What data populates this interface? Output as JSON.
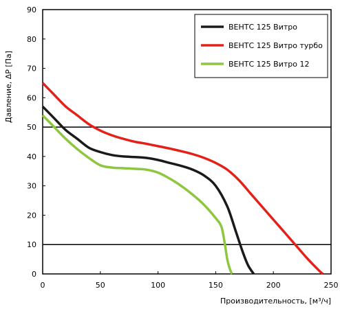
{
  "chart_data": {
    "type": "line",
    "xlabel": "Производительность, [м³/ч]",
    "ylabel": "Давление, ΔP [Па]",
    "xlim": [
      0,
      250
    ],
    "ylim": [
      0,
      90
    ],
    "xticks": [
      0,
      50,
      100,
      150,
      200,
      250
    ],
    "yticks": [
      0,
      10,
      20,
      30,
      40,
      50,
      60,
      70,
      80,
      90
    ],
    "major_gridlines_y": [
      10,
      50
    ],
    "legend_position": "top-right",
    "series": [
      {
        "name": "ВЕНТС 125 Витро",
        "color": "#1a1a1a",
        "points": [
          [
            0,
            57
          ],
          [
            10,
            53
          ],
          [
            20,
            49
          ],
          [
            30,
            46
          ],
          [
            40,
            43
          ],
          [
            50,
            41.5
          ],
          [
            60,
            40.5
          ],
          [
            70,
            40
          ],
          [
            80,
            39.8
          ],
          [
            90,
            39.5
          ],
          [
            100,
            38.8
          ],
          [
            110,
            37.8
          ],
          [
            120,
            36.8
          ],
          [
            130,
            35.5
          ],
          [
            140,
            33.5
          ],
          [
            150,
            30
          ],
          [
            160,
            23
          ],
          [
            167,
            15
          ],
          [
            173,
            8
          ],
          [
            178,
            3
          ],
          [
            183,
            0
          ]
        ]
      },
      {
        "name": "ВЕНТС 125 Витро турбо",
        "color": "#e32119",
        "points": [
          [
            0,
            65
          ],
          [
            10,
            61
          ],
          [
            20,
            57
          ],
          [
            30,
            54
          ],
          [
            40,
            51
          ],
          [
            50,
            48.8
          ],
          [
            60,
            47.2
          ],
          [
            70,
            46
          ],
          [
            80,
            45
          ],
          [
            90,
            44.3
          ],
          [
            100,
            43.5
          ],
          [
            110,
            42.7
          ],
          [
            120,
            41.8
          ],
          [
            130,
            40.8
          ],
          [
            140,
            39.5
          ],
          [
            150,
            37.8
          ],
          [
            160,
            35.5
          ],
          [
            170,
            32
          ],
          [
            180,
            27.5
          ],
          [
            190,
            23
          ],
          [
            200,
            18.5
          ],
          [
            210,
            14
          ],
          [
            220,
            9.5
          ],
          [
            230,
            5
          ],
          [
            240,
            1
          ],
          [
            243,
            0
          ]
        ]
      },
      {
        "name": "ВЕНТС 125 Витро 12",
        "color": "#8dc63f",
        "points": [
          [
            0,
            54
          ],
          [
            10,
            50
          ],
          [
            20,
            46
          ],
          [
            30,
            42.5
          ],
          [
            40,
            39.5
          ],
          [
            50,
            37
          ],
          [
            60,
            36.2
          ],
          [
            70,
            36
          ],
          [
            80,
            35.8
          ],
          [
            90,
            35.5
          ],
          [
            100,
            34.5
          ],
          [
            110,
            32.5
          ],
          [
            120,
            30
          ],
          [
            130,
            27
          ],
          [
            140,
            23.5
          ],
          [
            150,
            19
          ],
          [
            155,
            16
          ],
          [
            158,
            10
          ],
          [
            160,
            5
          ],
          [
            162,
            2
          ],
          [
            164,
            0
          ]
        ]
      }
    ]
  }
}
